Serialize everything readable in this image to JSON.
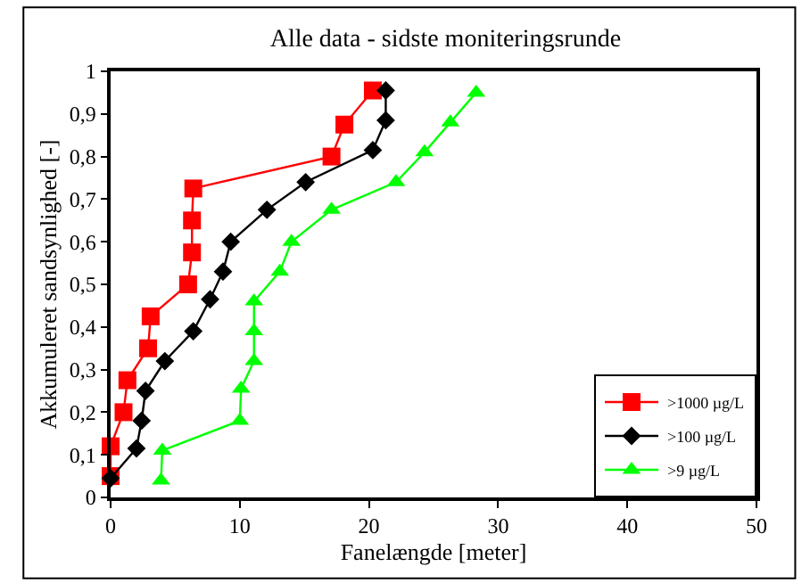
{
  "chart_data": {
    "type": "line",
    "title": "Alle data - sidste moniteringsrunde",
    "xlabel": "Fanelængde [meter]",
    "ylabel": "Akkumuleret sandsynlighed [-]",
    "xlim": [
      0,
      50
    ],
    "xticks": [
      0,
      10,
      20,
      30,
      40,
      50
    ],
    "ylim": [
      0,
      1
    ],
    "yticks": [
      0,
      {
        "value": 0.1,
        "label": "0,1"
      },
      {
        "value": 0.2,
        "label": "0,2"
      },
      {
        "value": 0.3,
        "label": "0,3"
      },
      {
        "value": 0.4,
        "label": "0,4"
      },
      {
        "value": 0.5,
        "label": "0,5"
      },
      {
        "value": 0.6,
        "label": "0,6"
      },
      {
        "value": 0.7,
        "label": "0,7"
      },
      {
        "value": 0.8,
        "label": "0,8"
      },
      {
        "value": 0.9,
        "label": "0,9"
      },
      1
    ],
    "legend": "bottom right",
    "series": [
      {
        "name": ">1000 µg/L",
        "color": "#ff0000",
        "marker": "square",
        "x": [
          0,
          0,
          1,
          1.3,
          2.9,
          3.1,
          6,
          6.3,
          6.3,
          6.4,
          17.1,
          18.1,
          20.3
        ],
        "values": [
          0.05,
          0.12,
          0.2,
          0.275,
          0.35,
          0.425,
          0.5,
          0.575,
          0.65,
          0.725,
          0.8,
          0.875,
          0.955
        ]
      },
      {
        "name": ">100 µg/L",
        "color": "#000000",
        "marker": "diamond",
        "x": [
          0,
          2,
          2.4,
          2.7,
          4.2,
          6.4,
          7.7,
          8.7,
          9.3,
          12.1,
          15.1,
          20.3,
          21.3,
          21.3
        ],
        "values": [
          0.045,
          0.115,
          0.18,
          0.25,
          0.32,
          0.39,
          0.465,
          0.53,
          0.6,
          0.675,
          0.74,
          0.815,
          0.885,
          0.955
        ]
      },
      {
        "name": ">9 µg/L",
        "color": "#00ff00",
        "marker": "triangle",
        "x": [
          3.9,
          4,
          10,
          10.1,
          11.1,
          11.1,
          11.1,
          13.1,
          14,
          17.1,
          22.1,
          24.3,
          26.3,
          28.3
        ],
        "values": [
          0.04,
          0.11,
          0.18,
          0.255,
          0.32,
          0.39,
          0.46,
          0.53,
          0.6,
          0.675,
          0.74,
          0.81,
          0.88,
          0.95
        ]
      }
    ]
  }
}
